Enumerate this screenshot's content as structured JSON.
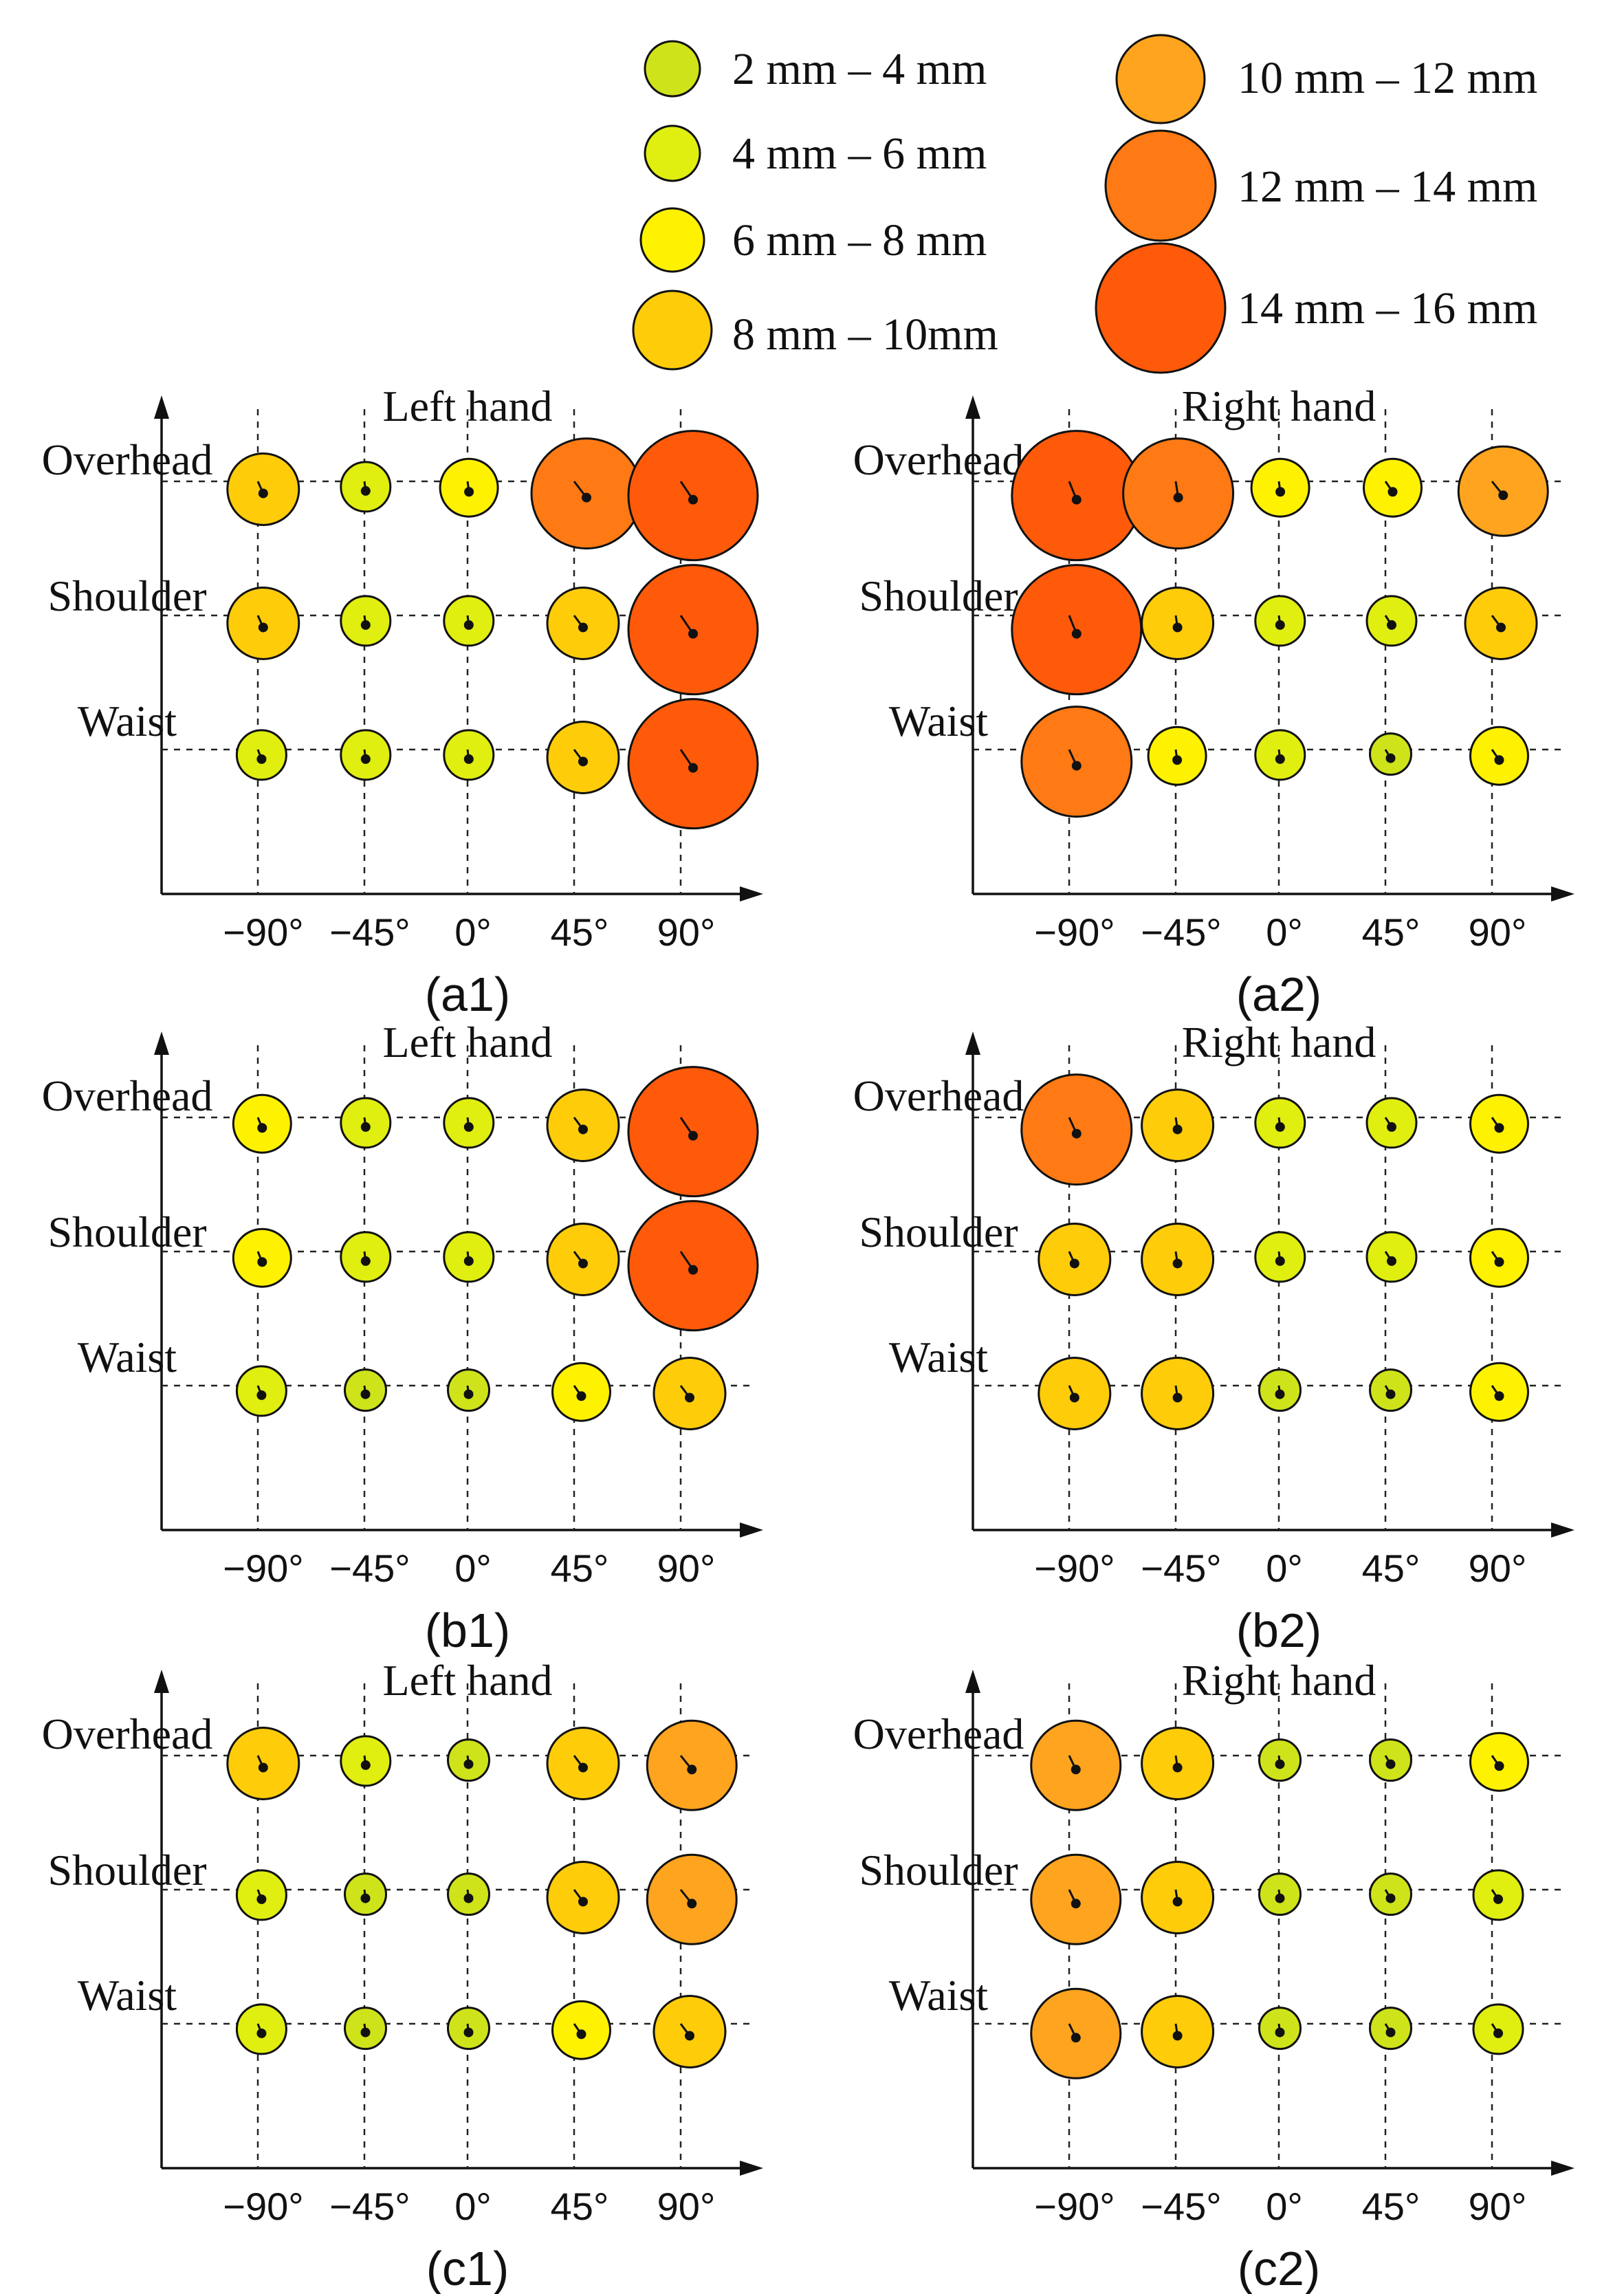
{
  "legend": {
    "items": [
      {
        "label": "2 mm – 4 mm",
        "color": "#cfe31a"
      },
      {
        "label": "4 mm – 6 mm",
        "color": "#e0ee10"
      },
      {
        "label": "6 mm – 8 mm",
        "color": "#fff200"
      },
      {
        "label": "8 mm – 10mm",
        "color": "#ffcc0a"
      },
      {
        "label": "10 mm – 12 mm",
        "color": "#ffa41f"
      },
      {
        "label": "12 mm – 14 mm",
        "color": "#ff7a14"
      },
      {
        "label": "14 mm – 16 mm",
        "color": "#ff5a0a"
      }
    ]
  },
  "chart_data": [
    {
      "id": "a1",
      "caption": "(a1)",
      "type": "scatter",
      "title": "Left hand",
      "categories": [
        "−90°",
        "−45°",
        "0°",
        "45°",
        "90°"
      ],
      "rows": [
        "Overhead",
        "Shoulder",
        "Waist"
      ],
      "size_class": [
        [
          3,
          1,
          2,
          5,
          6
        ],
        [
          3,
          1,
          1,
          3,
          6
        ],
        [
          1,
          1,
          1,
          3,
          6
        ]
      ]
    },
    {
      "id": "a2",
      "caption": "(a2)",
      "type": "scatter",
      "title": "Right hand",
      "categories": [
        "−90°",
        "−45°",
        "0°",
        "45°",
        "90°"
      ],
      "rows": [
        "Overhead",
        "Shoulder",
        "Waist"
      ],
      "size_class": [
        [
          6,
          5,
          2,
          2,
          4
        ],
        [
          6,
          3,
          1,
          1,
          3
        ],
        [
          5,
          2,
          1,
          0,
          2
        ]
      ]
    },
    {
      "id": "b1",
      "caption": "(b1)",
      "type": "scatter",
      "title": "Left hand",
      "categories": [
        "−90°",
        "−45°",
        "0°",
        "45°",
        "90°"
      ],
      "rows": [
        "Overhead",
        "Shoulder",
        "Waist"
      ],
      "size_class": [
        [
          2,
          1,
          1,
          3,
          6
        ],
        [
          2,
          1,
          1,
          3,
          6
        ],
        [
          1,
          0,
          0,
          2,
          3
        ]
      ]
    },
    {
      "id": "b2",
      "caption": "(b2)",
      "type": "scatter",
      "title": "Right hand",
      "categories": [
        "−90°",
        "−45°",
        "0°",
        "45°",
        "90°"
      ],
      "rows": [
        "Overhead",
        "Shoulder",
        "Waist"
      ],
      "size_class": [
        [
          5,
          3,
          1,
          1,
          2
        ],
        [
          3,
          3,
          1,
          1,
          2
        ],
        [
          3,
          3,
          0,
          0,
          2
        ]
      ]
    },
    {
      "id": "c1",
      "caption": "(c1)",
      "type": "scatter",
      "title": "Left hand",
      "categories": [
        "−90°",
        "−45°",
        "0°",
        "45°",
        "90°"
      ],
      "rows": [
        "Overhead",
        "Shoulder",
        "Waist"
      ],
      "size_class": [
        [
          3,
          1,
          0,
          3,
          4
        ],
        [
          1,
          0,
          0,
          3,
          4
        ],
        [
          1,
          0,
          0,
          2,
          3
        ]
      ]
    },
    {
      "id": "c2",
      "caption": "(c2)",
      "type": "scatter",
      "title": "Right hand",
      "categories": [
        "−90°",
        "−45°",
        "0°",
        "45°",
        "90°"
      ],
      "rows": [
        "Overhead",
        "Shoulder",
        "Waist"
      ],
      "size_class": [
        [
          4,
          3,
          0,
          0,
          2
        ],
        [
          4,
          3,
          0,
          0,
          1
        ],
        [
          4,
          3,
          0,
          0,
          1
        ]
      ]
    }
  ]
}
